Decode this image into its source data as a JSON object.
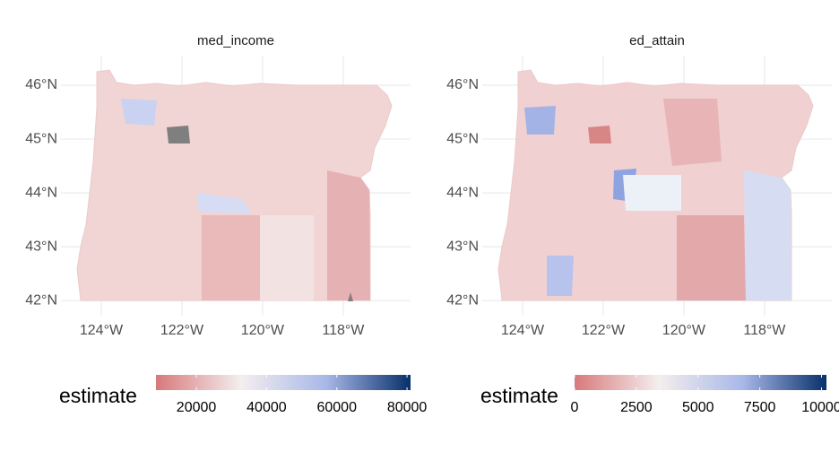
{
  "chart_data": [
    {
      "type": "map",
      "title": "med_income",
      "xlim": [
        -125,
        -116.33
      ],
      "ylim": [
        41.72,
        46.55
      ],
      "xticks": [
        {
          "value": -124,
          "label": "124°W"
        },
        {
          "value": -122,
          "label": "122°W"
        },
        {
          "value": -120,
          "label": "120°W"
        },
        {
          "value": -118,
          "label": "118°W"
        }
      ],
      "yticks": [
        {
          "value": 42,
          "label": "42°N"
        },
        {
          "value": 43,
          "label": "43°N"
        },
        {
          "value": 44,
          "label": "44°N"
        },
        {
          "value": 45,
          "label": "45°N"
        },
        {
          "value": 46,
          "label": "46°N"
        }
      ],
      "grid": true,
      "legend_title": "estimate",
      "legend_limits": [
        8500,
        81000
      ],
      "legend_ticks": [
        20000,
        40000,
        60000,
        80000
      ],
      "colors": [
        "#d7797b",
        "#f4eeee",
        "#a9b8e8",
        "#08306b"
      ]
    },
    {
      "type": "map",
      "title": "ed_attain",
      "xlim": [
        -125,
        -116.33
      ],
      "ylim": [
        41.72,
        46.55
      ],
      "xticks": [
        {
          "value": -124,
          "label": "124°W"
        },
        {
          "value": -122,
          "label": "122°W"
        },
        {
          "value": -120,
          "label": "120°W"
        },
        {
          "value": -118,
          "label": "118°W"
        }
      ],
      "yticks": [
        {
          "value": 42,
          "label": "42°N"
        },
        {
          "value": 43,
          "label": "43°N"
        },
        {
          "value": 44,
          "label": "44°N"
        },
        {
          "value": 45,
          "label": "45°N"
        },
        {
          "value": 46,
          "label": "46°N"
        }
      ],
      "grid": true,
      "legend_title": "estimate",
      "legend_limits": [
        0,
        10200
      ],
      "legend_ticks": [
        0,
        2500,
        5000,
        7500,
        10000
      ],
      "colors": [
        "#d7797b",
        "#f4eeee",
        "#a9b8e8",
        "#08306b"
      ]
    }
  ]
}
